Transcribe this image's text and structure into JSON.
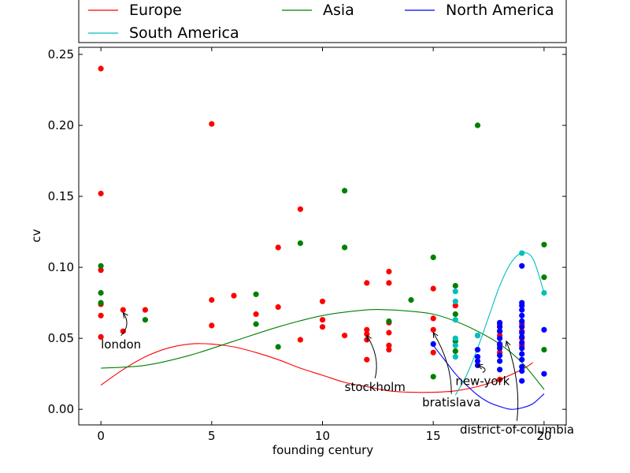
{
  "chart_data": {
    "type": "scatter",
    "xlabel": "founding century",
    "ylabel": "cv",
    "xlim": [
      -1,
      21
    ],
    "ylim": [
      -0.011,
      0.255
    ],
    "xticks": [
      0,
      5,
      10,
      15,
      20
    ],
    "yticks": [
      0.0,
      0.05,
      0.1,
      0.15,
      0.2,
      0.25
    ],
    "grid": false,
    "legend": {
      "placement": "top",
      "columns": 3
    },
    "series": [
      {
        "name": "Europe",
        "color": "#ff0000",
        "points": [
          [
            0,
            0.24
          ],
          [
            0,
            0.152
          ],
          [
            0,
            0.098
          ],
          [
            0,
            0.074
          ],
          [
            0,
            0.066
          ],
          [
            0,
            0.051
          ],
          [
            1,
            0.07
          ],
          [
            1,
            0.055
          ],
          [
            2,
            0.07
          ],
          [
            5,
            0.201
          ],
          [
            5,
            0.077
          ],
          [
            5,
            0.059
          ],
          [
            6,
            0.08
          ],
          [
            7,
            0.067
          ],
          [
            8,
            0.114
          ],
          [
            8,
            0.072
          ],
          [
            9,
            0.141
          ],
          [
            9,
            0.049
          ],
          [
            10,
            0.076
          ],
          [
            10,
            0.063
          ],
          [
            10,
            0.058
          ],
          [
            11,
            0.052
          ],
          [
            12,
            0.089
          ],
          [
            12,
            0.056
          ],
          [
            12,
            0.053
          ],
          [
            12,
            0.049
          ],
          [
            12,
            0.035
          ],
          [
            13,
            0.097
          ],
          [
            13,
            0.089
          ],
          [
            13,
            0.061
          ],
          [
            13,
            0.054
          ],
          [
            13,
            0.045
          ],
          [
            13,
            0.042
          ],
          [
            15,
            0.085
          ],
          [
            15,
            0.064
          ],
          [
            15,
            0.056
          ],
          [
            15,
            0.04
          ],
          [
            16,
            0.073
          ],
          [
            18,
            0.06
          ],
          [
            18,
            0.055
          ],
          [
            18,
            0.052
          ],
          [
            18,
            0.045
          ],
          [
            18,
            0.04
          ],
          [
            18,
            0.021
          ],
          [
            19,
            0.06
          ],
          [
            19,
            0.055
          ],
          [
            19,
            0.05
          ],
          [
            19,
            0.045
          ]
        ],
        "trend": [
          [
            0,
            0.017
          ],
          [
            1,
            0.028
          ],
          [
            2,
            0.037
          ],
          [
            3,
            0.043
          ],
          [
            4,
            0.046
          ],
          [
            5,
            0.046
          ],
          [
            6,
            0.044
          ],
          [
            7,
            0.04
          ],
          [
            8,
            0.035
          ],
          [
            9,
            0.029
          ],
          [
            10,
            0.024
          ],
          [
            11,
            0.019
          ],
          [
            12,
            0.016
          ],
          [
            13,
            0.013
          ],
          [
            14,
            0.012
          ],
          [
            15,
            0.012
          ],
          [
            16,
            0.013
          ],
          [
            17,
            0.016
          ],
          [
            18,
            0.021
          ],
          [
            19,
            0.028
          ],
          [
            19.5,
            0.033
          ]
        ]
      },
      {
        "name": "Asia",
        "color": "#008000",
        "points": [
          [
            0,
            0.101
          ],
          [
            0,
            0.082
          ],
          [
            0,
            0.075
          ],
          [
            2,
            0.063
          ],
          [
            7,
            0.081
          ],
          [
            7,
            0.06
          ],
          [
            8,
            0.044
          ],
          [
            9,
            0.117
          ],
          [
            11,
            0.154
          ],
          [
            11,
            0.114
          ],
          [
            13,
            0.062
          ],
          [
            14,
            0.077
          ],
          [
            15,
            0.107
          ],
          [
            15,
            0.023
          ],
          [
            16,
            0.087
          ],
          [
            16,
            0.067
          ],
          [
            16,
            0.048
          ],
          [
            16,
            0.041
          ],
          [
            17,
            0.2
          ],
          [
            17,
            0.052
          ],
          [
            19,
            0.062
          ],
          [
            20,
            0.116
          ],
          [
            20,
            0.093
          ],
          [
            20,
            0.042
          ]
        ],
        "trend": [
          [
            0,
            0.029
          ],
          [
            2,
            0.031
          ],
          [
            4,
            0.038
          ],
          [
            6,
            0.048
          ],
          [
            8,
            0.058
          ],
          [
            10,
            0.066
          ],
          [
            12,
            0.07
          ],
          [
            13,
            0.07
          ],
          [
            14,
            0.069
          ],
          [
            15,
            0.067
          ],
          [
            16,
            0.062
          ],
          [
            17,
            0.055
          ],
          [
            18,
            0.046
          ],
          [
            19,
            0.033
          ],
          [
            20,
            0.014
          ]
        ]
      },
      {
        "name": "North America",
        "color": "#0000ff",
        "points": [
          [
            15,
            0.046
          ],
          [
            17,
            0.042
          ],
          [
            17,
            0.037
          ],
          [
            17,
            0.034
          ],
          [
            17,
            0.031
          ],
          [
            18,
            0.061
          ],
          [
            18,
            0.058
          ],
          [
            18,
            0.055
          ],
          [
            18,
            0.05
          ],
          [
            18,
            0.046
          ],
          [
            18,
            0.043
          ],
          [
            18,
            0.038
          ],
          [
            18,
            0.034
          ],
          [
            18,
            0.028
          ],
          [
            19,
            0.101
          ],
          [
            19,
            0.075
          ],
          [
            19,
            0.073
          ],
          [
            19,
            0.07
          ],
          [
            19,
            0.066
          ],
          [
            19,
            0.062
          ],
          [
            19,
            0.058
          ],
          [
            19,
            0.054
          ],
          [
            19,
            0.051
          ],
          [
            19,
            0.047
          ],
          [
            19,
            0.043
          ],
          [
            19,
            0.039
          ],
          [
            19,
            0.035
          ],
          [
            19,
            0.03
          ],
          [
            19,
            0.027
          ],
          [
            19,
            0.02
          ],
          [
            20,
            0.056
          ],
          [
            20,
            0.025
          ]
        ],
        "trend": [
          [
            15,
            0.045
          ],
          [
            15.5,
            0.035
          ],
          [
            16,
            0.025
          ],
          [
            16.5,
            0.017
          ],
          [
            17,
            0.01
          ],
          [
            17.5,
            0.005
          ],
          [
            18,
            0.002
          ],
          [
            18.5,
            0.0
          ],
          [
            19,
            0.001
          ],
          [
            19.5,
            0.004
          ],
          [
            20,
            0.011
          ]
        ]
      },
      {
        "name": "South America",
        "color": "#00bfbf",
        "points": [
          [
            16,
            0.083
          ],
          [
            16,
            0.076
          ],
          [
            16,
            0.063
          ],
          [
            16,
            0.05
          ],
          [
            16,
            0.045
          ],
          [
            16,
            0.037
          ],
          [
            17,
            0.052
          ],
          [
            19,
            0.11
          ],
          [
            20,
            0.082
          ]
        ],
        "trend": [
          [
            16,
            0.01
          ],
          [
            16.5,
            0.024
          ],
          [
            17,
            0.043
          ],
          [
            17.5,
            0.065
          ],
          [
            18,
            0.087
          ],
          [
            18.5,
            0.103
          ],
          [
            19,
            0.11
          ],
          [
            19.5,
            0.106
          ],
          [
            20,
            0.082
          ]
        ]
      }
    ],
    "annotations": [
      {
        "text": "london",
        "point": [
          1,
          0.068
        ],
        "text_pos": [
          0,
          0.043
        ],
        "anchor": "start"
      },
      {
        "text": "stockholm",
        "point": [
          12,
          0.052
        ],
        "text_pos": [
          11,
          0.013
        ],
        "anchor": "start"
      },
      {
        "text": "bratislava",
        "point": [
          15,
          0.054
        ],
        "text_pos": [
          14.5,
          0.002
        ],
        "anchor": "start"
      },
      {
        "text": "new-york",
        "point": [
          17,
          0.031
        ],
        "text_pos": [
          16,
          0.017
        ],
        "anchor": "start"
      },
      {
        "text": "district-of-columbia",
        "point": [
          18.3,
          0.048
        ],
        "text_pos": [
          16.2,
          -0.017
        ],
        "anchor": "start"
      }
    ]
  }
}
